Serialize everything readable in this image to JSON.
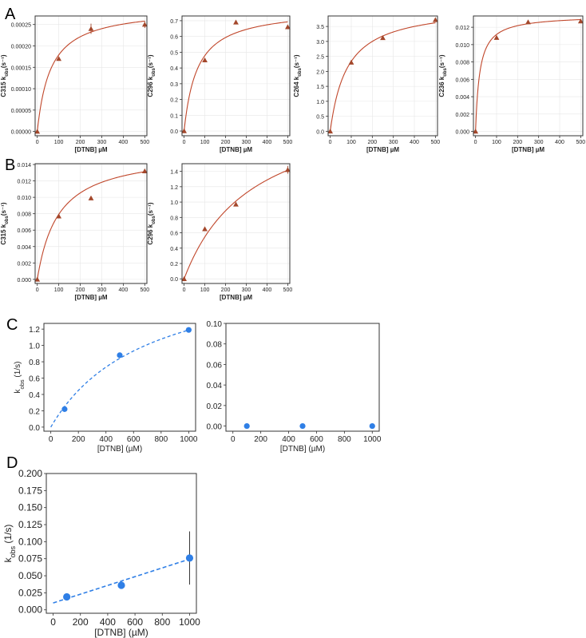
{
  "panel_labels": [
    "A",
    "B",
    "C",
    "D"
  ],
  "colors": {
    "fit": "#c0462a",
    "marker": "#a3472b",
    "blue": "#2f7fe6",
    "grid": "#e6e6e6",
    "axis": "#333333"
  },
  "chart_data": [
    {
      "id": "A1",
      "type": "scatter",
      "panel": "A",
      "xlabel": "[DTNB] µM",
      "ylabel": "C315 k_obs (s⁻¹)",
      "y_prefix": "C315 k",
      "y_sub": "obs",
      "y_unit": "(s⁻¹)",
      "xlim": [
        -10,
        510
      ],
      "ylim": [
        -1e-05,
        0.00027
      ],
      "xticks": [
        0,
        100,
        200,
        300,
        400,
        500
      ],
      "xtick_labels": [
        "0",
        "100",
        "200",
        "300",
        "400",
        "500"
      ],
      "yticks": [
        0,
        5e-05,
        0.0001,
        0.00015,
        0.0002,
        0.00025
      ],
      "ytick_labels": [
        "0.00000",
        "0.00005",
        "0.00010",
        "0.00015",
        "0.00020",
        "0.00025"
      ],
      "x": [
        0,
        100,
        250,
        500
      ],
      "y": [
        0,
        0.00017,
        0.00024,
        0.00025
      ],
      "err": [
        0,
        0,
        1.2e-05,
        8e-06
      ],
      "fit": {
        "kind": "hyperbolic",
        "vmax": 0.00029,
        "k": 62
      }
    },
    {
      "id": "A2",
      "type": "scatter",
      "panel": "A",
      "xlabel": "[DTNB] µM",
      "ylabel": "C296 k_obs (s⁻¹)",
      "y_prefix": "C296 k",
      "y_sub": "obs",
      "y_unit": "(s⁻¹)",
      "xlim": [
        -10,
        510
      ],
      "ylim": [
        -0.03,
        0.73
      ],
      "xticks": [
        0,
        100,
        200,
        300,
        400,
        500
      ],
      "xtick_labels": [
        "0",
        "100",
        "200",
        "300",
        "400",
        "500"
      ],
      "yticks": [
        0,
        0.1,
        0.2,
        0.3,
        0.4,
        0.5,
        0.6,
        0.7
      ],
      "ytick_labels": [
        "0.0",
        "0.1",
        "0.2",
        "0.3",
        "0.4",
        "0.5",
        "0.6",
        "0.7"
      ],
      "x": [
        0,
        100,
        250,
        500
      ],
      "y": [
        0,
        0.45,
        0.69,
        0.66
      ],
      "err": [
        0,
        0,
        0,
        0
      ],
      "fit": {
        "kind": "hyperbolic",
        "vmax": 0.78,
        "k": 63
      }
    },
    {
      "id": "A3",
      "type": "scatter",
      "panel": "A",
      "xlabel": "[DTNB] µM",
      "ylabel": "C264 k_obs (s⁻¹)",
      "y_prefix": "C264 k",
      "y_sub": "obs",
      "y_unit": "(s⁻¹)",
      "xlim": [
        -10,
        510
      ],
      "ylim": [
        -0.15,
        3.85
      ],
      "xticks": [
        0,
        100,
        200,
        300,
        400,
        500
      ],
      "xtick_labels": [
        "0",
        "100",
        "200",
        "300",
        "400",
        "500"
      ],
      "yticks": [
        0,
        0.5,
        1.0,
        1.5,
        2.0,
        2.5,
        3.0,
        3.5
      ],
      "ytick_labels": [
        "0.0",
        "0.5",
        "1.0",
        "1.5",
        "2.0",
        "2.5",
        "3.0",
        "3.5"
      ],
      "x": [
        0,
        100,
        250,
        500
      ],
      "y": [
        0,
        2.3,
        3.12,
        3.72
      ],
      "err": [
        0,
        0,
        0,
        0
      ],
      "fit": {
        "kind": "hyperbolic",
        "vmax": 4.2,
        "k": 80
      }
    },
    {
      "id": "A4",
      "type": "scatter",
      "panel": "A",
      "xlabel": "[DTNB] µM",
      "ylabel": "C236 k_obs (s⁻¹)",
      "y_prefix": "C236 k",
      "y_sub": "obs",
      "y_unit": "(s⁻¹)",
      "xlim": [
        -10,
        510
      ],
      "ylim": [
        -0.0005,
        0.0133
      ],
      "xticks": [
        0,
        100,
        200,
        300,
        400,
        500
      ],
      "xtick_labels": [
        "0",
        "100",
        "200",
        "300",
        "400",
        "500"
      ],
      "yticks": [
        0,
        0.002,
        0.004,
        0.006,
        0.008,
        0.01,
        0.012
      ],
      "ytick_labels": [
        "0.000",
        "0.002",
        "0.004",
        "0.006",
        "0.008",
        "0.010",
        "0.012"
      ],
      "x": [
        0,
        100,
        250,
        500
      ],
      "y": [
        0,
        0.0108,
        0.0126,
        0.0127
      ],
      "err": [
        0,
        0,
        0,
        0
      ],
      "fit": {
        "kind": "hyperbolic",
        "vmax": 0.0134,
        "k": 20
      }
    },
    {
      "id": "B1",
      "type": "scatter",
      "panel": "B",
      "xlabel": "[DTNB] µM",
      "ylabel": "C315 k_obs (s⁻¹)",
      "y_prefix": "C315 k",
      "y_sub": "obs",
      "y_unit": "(s⁻¹)",
      "xlim": [
        -10,
        510
      ],
      "ylim": [
        -0.0005,
        0.0141
      ],
      "xticks": [
        0,
        100,
        200,
        300,
        400,
        500
      ],
      "xtick_labels": [
        "0",
        "100",
        "200",
        "300",
        "400",
        "500"
      ],
      "yticks": [
        0,
        0.002,
        0.004,
        0.006,
        0.008,
        0.01,
        0.012,
        0.014
      ],
      "ytick_labels": [
        "0.000",
        "0.002",
        "0.004",
        "0.006",
        "0.008",
        "0.010",
        "0.012",
        "0.014"
      ],
      "x": [
        0,
        100,
        250,
        500
      ],
      "y": [
        0,
        0.0077,
        0.0099,
        0.0132
      ],
      "err": [
        0,
        0,
        0,
        0
      ],
      "fit": {
        "kind": "hyperbolic",
        "vmax": 0.0157,
        "k": 98
      }
    },
    {
      "id": "B2",
      "type": "scatter",
      "panel": "B",
      "xlabel": "[DTNB] µM",
      "ylabel": "C296 k_obs (s⁻¹)",
      "y_prefix": "C296 k",
      "y_sub": "obs",
      "y_unit": "(s⁻¹)",
      "xlim": [
        -10,
        510
      ],
      "ylim": [
        -0.06,
        1.5
      ],
      "xticks": [
        0,
        100,
        200,
        300,
        400,
        500
      ],
      "xtick_labels": [
        "0",
        "100",
        "200",
        "300",
        "400",
        "500"
      ],
      "yticks": [
        0,
        0.2,
        0.4,
        0.6,
        0.8,
        1.0,
        1.2,
        1.4
      ],
      "ytick_labels": [
        "0.0",
        "0.2",
        "0.4",
        "0.6",
        "0.8",
        "1.0",
        "1.2",
        "1.4"
      ],
      "x": [
        0,
        100,
        250,
        500
      ],
      "y": [
        0,
        0.65,
        0.97,
        1.42
      ],
      "err": [
        0,
        0,
        0,
        0.05
      ],
      "fit": {
        "kind": "hyperbolic",
        "vmax": 2.35,
        "k": 330
      }
    },
    {
      "id": "C1",
      "type": "scatter",
      "panel": "C",
      "xlabel": "[DTNB] (µM)",
      "ylabel": "k_obs (1/s)",
      "y_prefix": "k",
      "y_sub": "obs",
      "y_unit": " (1/s)",
      "xlim": [
        -50,
        1050
      ],
      "ylim": [
        -0.05,
        1.27
      ],
      "xticks": [
        0,
        200,
        400,
        600,
        800,
        1000
      ],
      "xtick_labels": [
        "0",
        "200",
        "400",
        "600",
        "800",
        "1000"
      ],
      "yticks": [
        0,
        0.2,
        0.4,
        0.6,
        0.8,
        1.0,
        1.2
      ],
      "ytick_labels": [
        "0.0",
        "0.2",
        "0.4",
        "0.6",
        "0.8",
        "1.0",
        "1.2"
      ],
      "x": [
        100,
        500,
        1000
      ],
      "y": [
        0.22,
        0.88,
        1.19
      ],
      "err": [
        0,
        0,
        0
      ],
      "fit": {
        "kind": "hyperbolic",
        "vmax": 2.02,
        "k": 700
      }
    },
    {
      "id": "C2",
      "type": "scatter",
      "panel": "C",
      "xlabel": "[DTNB] (µM)",
      "ylabel": "",
      "xlim": [
        -50,
        1050
      ],
      "ylim": [
        -0.005,
        0.1
      ],
      "xticks": [
        0,
        200,
        400,
        600,
        800,
        1000
      ],
      "xtick_labels": [
        "0",
        "200",
        "400",
        "600",
        "800",
        "1000"
      ],
      "yticks": [
        0,
        0.02,
        0.04,
        0.06,
        0.08,
        0.1
      ],
      "ytick_labels": [
        "0.00",
        "0.02",
        "0.04",
        "0.06",
        "0.08",
        "0.10"
      ],
      "x": [
        100,
        500,
        1000
      ],
      "y": [
        0,
        0,
        0
      ],
      "err": [
        0,
        0,
        0
      ]
    },
    {
      "id": "D1",
      "type": "scatter",
      "panel": "D",
      "xlabel": "[DTNB] (µM)",
      "ylabel": "k_obs (1/s)",
      "y_prefix": "k",
      "y_sub": "obs",
      "y_unit": " (1/s)",
      "xlim": [
        -50,
        1050
      ],
      "ylim": [
        -0.005,
        0.2
      ],
      "xticks": [
        0,
        200,
        400,
        600,
        800,
        1000
      ],
      "xtick_labels": [
        "0",
        "200",
        "400",
        "600",
        "800",
        "1000"
      ],
      "yticks": [
        0,
        0.025,
        0.05,
        0.075,
        0.1,
        0.125,
        0.15,
        0.175,
        0.2
      ],
      "ytick_labels": [
        "0.000",
        "0.025",
        "0.050",
        "0.075",
        "0.100",
        "0.125",
        "0.150",
        "0.175",
        "0.200"
      ],
      "x": [
        100,
        500,
        1000
      ],
      "y": [
        0.019,
        0.036,
        0.076
      ],
      "err": [
        0,
        0.004,
        0.039
      ],
      "fit": {
        "kind": "linear",
        "slope": 6.43e-05,
        "intercept": 0.0101,
        "x_start": 0,
        "x_end": 1000
      }
    }
  ]
}
